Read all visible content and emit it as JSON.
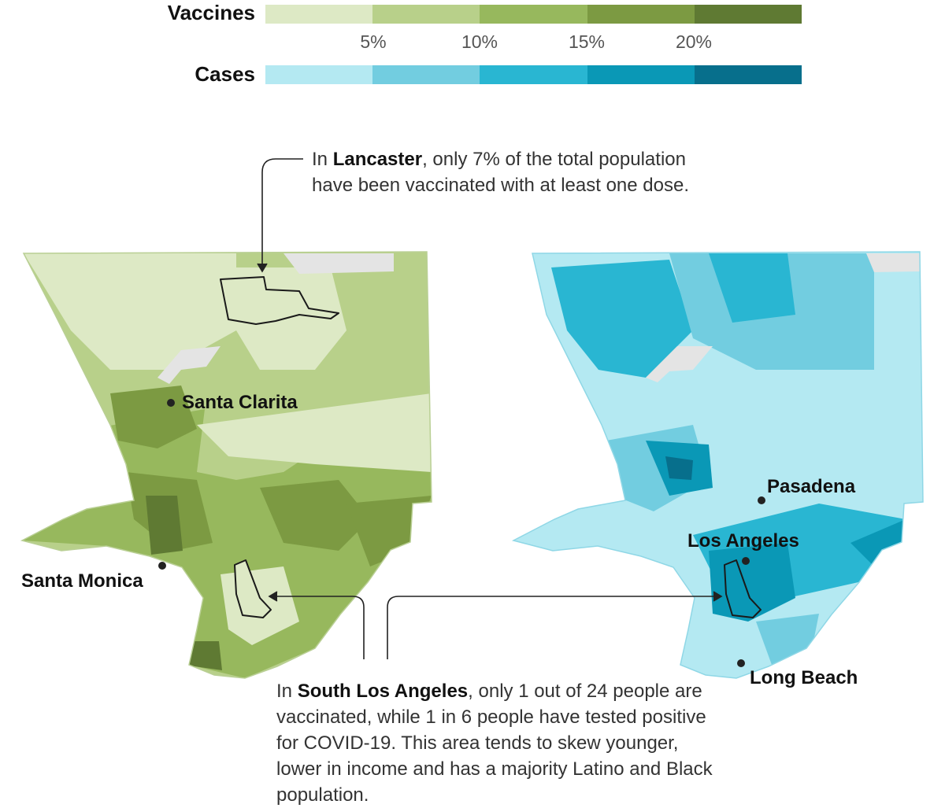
{
  "legend": {
    "vaccines_label": "Vaccines",
    "cases_label": "Cases",
    "ticks": [
      "5%",
      "10%",
      "15%",
      "20%"
    ],
    "vaccine_colors": [
      "#dde9c5",
      "#b8d08a",
      "#97b85d",
      "#7c9a42",
      "#5f7a33"
    ],
    "case_colors": [
      "#b4e9f2",
      "#72cde0",
      "#29b6d2",
      "#0a98b6",
      "#076f8c"
    ]
  },
  "annotations": {
    "lancaster": {
      "pre": "In ",
      "bold": "Lancaster",
      "post": ", only 7% of the total population have been vaccinated with at least one dose."
    },
    "south_la": {
      "pre": "In ",
      "bold": "South Los Angeles",
      "post": ", only 1 out of 24 people are vaccinated, while 1 in 6 people have tested positive for COVID-19. This area tends to skew younger, lower in income and has a majority Latino and Black population."
    }
  },
  "cities": {
    "santa_clarita": "Santa Clarita",
    "santa_monica": "Santa Monica",
    "pasadena": "Pasadena",
    "los_angeles": "Los Angeles",
    "long_beach": "Long Beach"
  },
  "colors": {
    "no_data": "#e4e4e4",
    "outline": "#1a1a1a"
  }
}
